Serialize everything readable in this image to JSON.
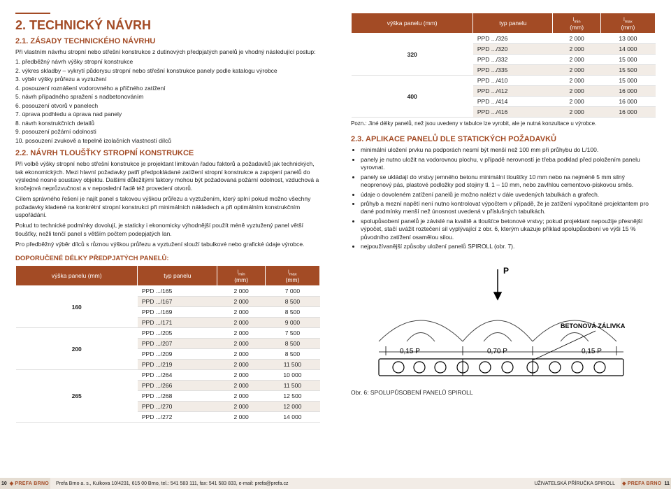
{
  "left": {
    "h1": "2. TECHNICKÝ NÁVRH",
    "h2_1": "2.1. ZÁSADY TECHNICKÉHO NÁVRHU",
    "intro": "Při vlastním návrhu stropní nebo střešní konstrukce z dutinových předpjatých panelů je vhodný následující postup:",
    "steps": [
      "1. předběžný návrh výšky stropní konstrukce",
      "2. výkres skladby – vykrytí půdorysu stropní nebo střešní konstrukce panely podle katalogu výrobce",
      "3. výběr výšky průřezu a vyztužení",
      "4. posouzení roznášení vodorovného a příčného zatížení",
      "5. návrh případného spražení s nadbetonováním",
      "6. posouzení otvorů v panelech",
      "7. úprava podhledu a úprava nad panely",
      "8. návrh konstrukčních detailů",
      "9. posouzení požární odolnosti",
      "10. posouzení zvukově a tepelně izolačních vlastností dílců"
    ],
    "h2_2": "2.2. NÁVRH TLOUŠŤKY STROPNÍ KONSTRUKCE",
    "para": [
      "Při volbě výšky stropní nebo střešní konstrukce je projektant limitován řadou faktorů a požadavků jak technických, tak ekonomických. Mezi hlavní požadavky patří předpokládané zatížení stropní konstrukce a zapojení panelů do výsledné nosné soustavy objektu. Dalšími důležitými faktory mohou být požadovaná požární odolnost, vzduchová a kročejová neprůzvučnost a v neposlední řadě též provedení otvorů.",
      "Cílem správného řešení je najít panel s takovou výškou průřezu a vyztužením, který splní pokud možno všechny požadavky kladené na konkrétní stropní konstrukci při minimálních nákladech a při optimálním konstrukčním uspořádání.",
      "Pokud to technické podmínky dovolují, je staticky i ekonomicky výhodnější použít méně vyztužený panel větší tloušťky, nežli tenčí panel s větším počtem podepjatých lan.",
      "Pro předběžný výběr dílců s různou výškou průřezu a vyztužení slouží tabulkové nebo grafické údaje výrobce."
    ],
    "table_caption": "DOPORUČENÉ DÉLKY PŘEDPJATÝCH PANELŮ:",
    "tbl": {
      "headers": [
        "výška panelu (mm)",
        "typ panelu",
        "l<sub>min</sub><br>(mm)",
        "l<sub>max</sub><br>(mm)"
      ],
      "groups": [
        {
          "h": "160",
          "rows": [
            [
              "PPD .../165",
              "2 000",
              "7 000"
            ],
            [
              "PPD .../167",
              "2 000",
              "8 500"
            ],
            [
              "PPD .../169",
              "2 000",
              "8 500"
            ],
            [
              "PPD .../171",
              "2 000",
              "9 000"
            ]
          ]
        },
        {
          "h": "200",
          "rows": [
            [
              "PPD .../205",
              "2 000",
              "7 500"
            ],
            [
              "PPD .../207",
              "2 000",
              "8 500"
            ],
            [
              "PPD .../209",
              "2 000",
              "8 500"
            ],
            [
              "PPD .../219",
              "2 000",
              "11 500"
            ]
          ]
        },
        {
          "h": "265",
          "rows": [
            [
              "PPD .../264",
              "2 000",
              "10 000"
            ],
            [
              "PPD .../266",
              "2 000",
              "11 500"
            ],
            [
              "PPD .../268",
              "2 000",
              "12 500"
            ],
            [
              "PPD .../270",
              "2 000",
              "12 000"
            ],
            [
              "PPD .../272",
              "2 000",
              "14 000"
            ]
          ]
        }
      ]
    }
  },
  "right": {
    "tbl": {
      "headers": [
        "výška panelu (mm)",
        "typ panelu",
        "l<sub>min</sub><br>(mm)",
        "l<sub>max</sub><br>(mm)"
      ],
      "groups": [
        {
          "h": "320",
          "rows": [
            [
              "PPD .../326",
              "2 000",
              "13 000"
            ],
            [
              "PPD .../320",
              "2 000",
              "14 000"
            ],
            [
              "PPD .../332",
              "2 000",
              "15 000"
            ],
            [
              "PPD .../335",
              "2 000",
              "15 500"
            ]
          ]
        },
        {
          "h": "400",
          "rows": [
            [
              "PPD .../410",
              "2 000",
              "15 000"
            ],
            [
              "PPD .../412",
              "2 000",
              "16 000"
            ],
            [
              "PPD .../414",
              "2 000",
              "16 000"
            ],
            [
              "PPD .../416",
              "2 000",
              "16 000"
            ]
          ]
        }
      ]
    },
    "note": "Pozn.: Jiné délky panelů, než jsou uvedeny v tabulce lze vyrobit, ale je nutná konzultace u výrobce.",
    "h2_3": "2.3. APLIKACE PANELŮ DLE STATICKÝCH POŽADAVKŮ",
    "bullets": [
      "minimální uložení prvku na podporách nesmí být menší než 100 mm při průhybu do L/100.",
      "panely je nutno uložit na vodorovnou plochu, v případě nerovností je třeba podklad před položením panelu vyrovnat.",
      "panely se ukládají do vrstvy jemného betonu minimální tloušťky 10 mm nebo na nejméně 5 mm silný neoprenový pás, plastové podložky pod stojiny tl. 1 – 10 mm, nebo zavlhlou cementovo-pískovou směs.",
      "údaje o dovoleném zatížení panelů je možno nalézt v dále uvedených tabulkách a grafech.",
      "průhyb a mezní napětí není nutno kontrolovat výpočtem v případě, že je zatížení vypočítané projektantem pro dané podmínky menší než únosnost uvedená v příslušných tabulkách.",
      "spolupůsobení panelů je závislé na kvalitě a tloušťce betonové vrstvy; pokud projektant nepoužije přesnější výpočet, stačí uvážit roztečení sil vyplývající z obr. 6, kterým ukazuje příklad spolupůsobení ve výši 15 % původního zatížení osamělou silou.",
      "nejpoužívanější způsoby uložení panelů SPIROLL (obr. 7)."
    ],
    "fig": {
      "P": "P",
      "l1": "0,15 P",
      "l2": "0,70 P",
      "l3": "0,15 P",
      "label_beton": "BETONOVÁ ZÁLIVKA",
      "caption": "Obr. 6: SPOLUPŮSOBENÍ PANELŮ SPIROLL"
    }
  },
  "footer": {
    "pg_left": "10",
    "pg_right": "11",
    "brand": "PREFA BRNO",
    "addr": "Prefa Brno a. s., Kulkova 10/4231, 615 00 Brno, tel.: 541 583 111, fax: 541 583 833, e-mail: prefa@prefa.cz",
    "guide": "UŽIVATELSKÁ PŘÍRUČKA SPIROLL"
  },
  "colors": {
    "accent": "#a34b25",
    "alt_row": "#f2ece6",
    "footer_bg": "#f2ece6",
    "footer_side": "#e5ddd2"
  }
}
